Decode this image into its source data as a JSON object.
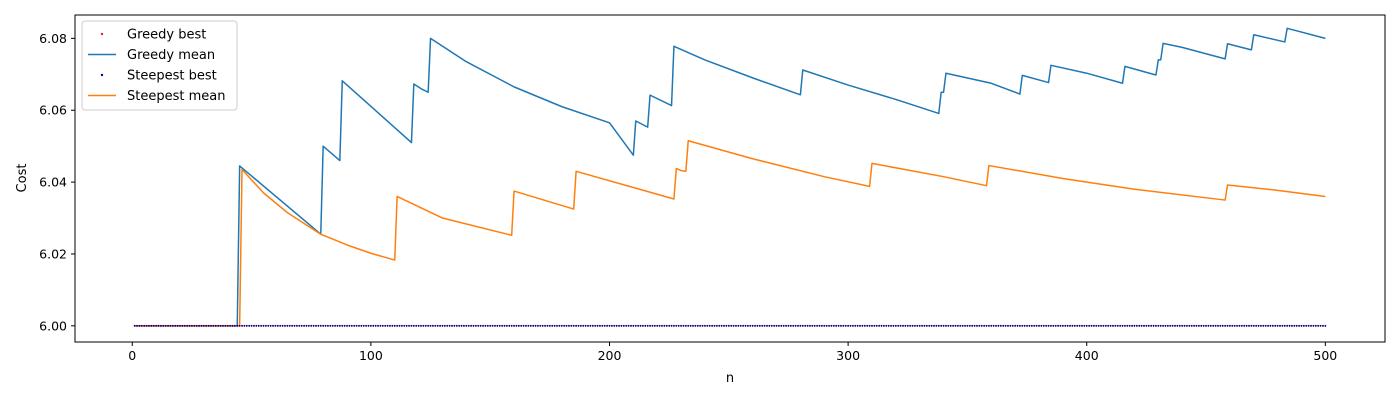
{
  "chart_data": {
    "type": "line",
    "title": "",
    "xlabel": "n",
    "ylabel": "Cost",
    "xlim": [
      -24,
      525
    ],
    "ylim": [
      5.9955,
      6.0865
    ],
    "x_ticks": [
      0,
      100,
      200,
      300,
      400,
      500
    ],
    "x_tick_labels": [
      "0",
      "100",
      "200",
      "300",
      "400",
      "500"
    ],
    "y_ticks": [
      6.0,
      6.02,
      6.04,
      6.06,
      6.08
    ],
    "y_tick_labels": [
      "6.00",
      "6.02",
      "6.04",
      "6.06",
      "6.08"
    ],
    "grid": false,
    "legend_position": "top-left",
    "series": [
      {
        "name": "Greedy best",
        "kind": "markers",
        "color": "#d62728",
        "x_range": [
          1,
          500,
          1
        ],
        "y_constant": 6.0
      },
      {
        "name": "Greedy mean",
        "kind": "line",
        "color": "#1f77b4",
        "x": [
          1,
          44,
          45,
          79,
          80,
          87,
          88,
          117,
          118,
          121,
          124,
          125,
          140,
          160,
          180,
          200,
          210,
          211,
          216,
          217,
          226,
          227,
          240,
          260,
          280,
          281,
          300,
          320,
          338,
          339,
          340,
          341,
          360,
          372,
          373,
          384,
          385,
          400,
          415,
          416,
          429,
          430,
          431,
          432,
          440,
          458,
          459,
          469,
          470,
          483,
          484,
          500
        ],
        "y": [
          6.0,
          6.0,
          6.0445,
          6.0255,
          6.05,
          6.046,
          6.0682,
          6.051,
          6.0673,
          6.066,
          6.065,
          6.08,
          6.0735,
          6.0665,
          6.061,
          6.0565,
          6.0475,
          6.057,
          6.0553,
          6.0642,
          6.0613,
          6.0778,
          6.074,
          6.069,
          6.0643,
          6.0712,
          6.067,
          6.063,
          6.0591,
          6.065,
          6.065,
          6.0703,
          6.0675,
          6.0645,
          6.0697,
          6.0677,
          6.0725,
          6.0703,
          6.0675,
          6.0722,
          6.0698,
          6.074,
          6.074,
          6.0786,
          6.0775,
          6.0743,
          6.0785,
          6.0768,
          6.081,
          6.079,
          6.0828,
          6.08
        ]
      },
      {
        "name": "Steepest best",
        "kind": "markers",
        "color": "#00008b",
        "x_range": [
          1,
          500,
          1
        ],
        "y_constant": 6.0
      },
      {
        "name": "Steepest mean",
        "kind": "line",
        "color": "#ff7f0e",
        "x": [
          1,
          45,
          46,
          55,
          65,
          79,
          90,
          100,
          110,
          111,
          130,
          159,
          160,
          185,
          186,
          210,
          227,
          228,
          230,
          232,
          233,
          260,
          290,
          309,
          310,
          340,
          358,
          359,
          390,
          420,
          458,
          459,
          480,
          500
        ],
        "y": [
          6.0,
          6.0,
          6.0435,
          6.037,
          6.0315,
          6.0255,
          6.0225,
          6.0202,
          6.0183,
          6.036,
          6.03,
          6.0252,
          6.0375,
          6.0325,
          6.043,
          6.0385,
          6.0353,
          6.0438,
          6.0432,
          6.043,
          6.0515,
          6.0465,
          6.0415,
          6.0388,
          6.0452,
          6.0415,
          6.039,
          6.0446,
          6.041,
          6.038,
          6.035,
          6.0392,
          6.0377,
          6.036
        ]
      }
    ]
  }
}
